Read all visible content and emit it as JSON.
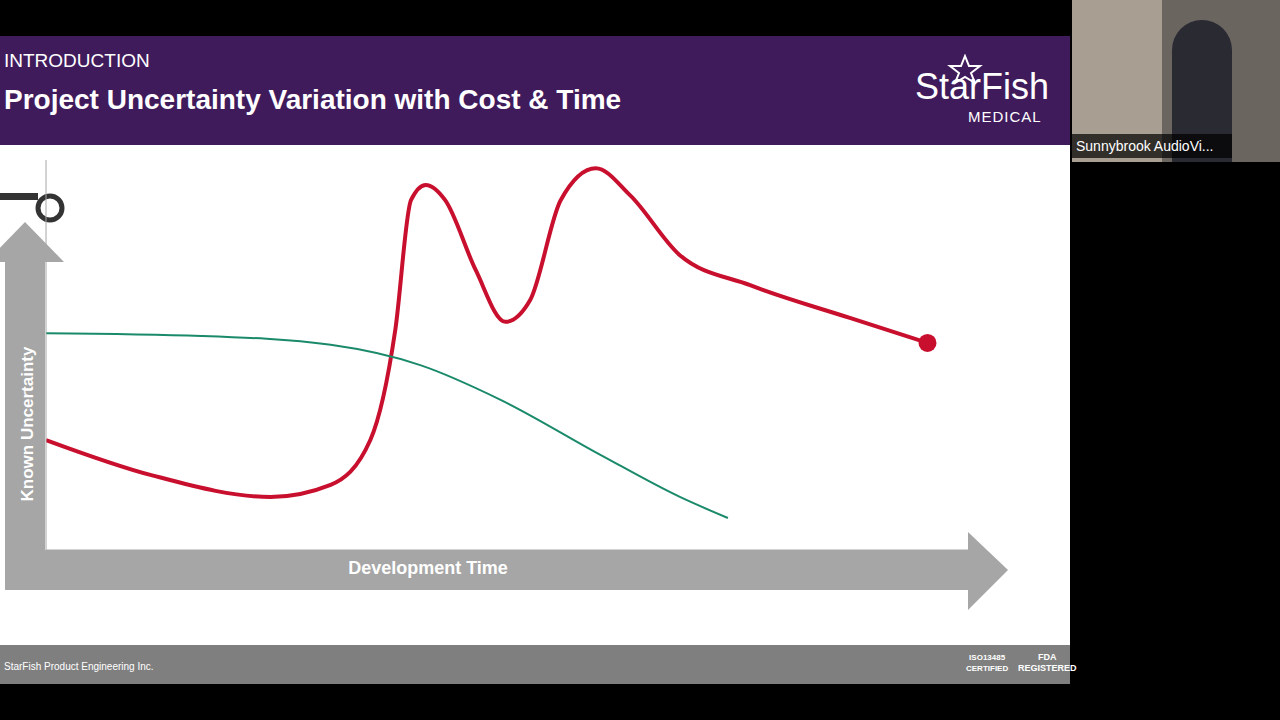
{
  "header": {
    "section": "INTRODUCTION",
    "title": "Project Uncertainty Variation with Cost & Time",
    "logo": "StarFish",
    "logo_sub": "MEDICAL"
  },
  "footer": {
    "text": "StarFish Product Engineering Inc.",
    "badges": [
      "ISO13485 CERTIFIED",
      "FDA REGISTERED"
    ]
  },
  "webcam": {
    "label": "Sunnybrook AudioVi..."
  },
  "chart_data": {
    "type": "line",
    "x_label": "Development Time",
    "y_label": "Known Uncertainty",
    "xlim": [
      0,
      100
    ],
    "ylim": [
      0,
      100
    ],
    "tick_labels": false,
    "grid": false,
    "series": [
      {
        "color": "#c8102e",
        "marker": "end_dot",
        "line_style": "solid",
        "x": [
          0,
          11.4,
          24.3,
          30.8,
          35.1,
          37.8,
          39.5,
          41.1,
          43.2,
          46.5,
          49.7,
          52.4,
          55.7,
          59.5,
          63.2,
          68.6,
          76.2,
          87.0,
          95.4
        ],
        "values": [
          28.2,
          19.2,
          13.6,
          16.7,
          28.2,
          56.4,
          89.7,
          93.6,
          89.7,
          71.8,
          58.5,
          64.1,
          89.7,
          97.9,
          91.0,
          75.6,
          67.9,
          59.5,
          53.1
        ]
      },
      {
        "color": "#1a8a6a",
        "marker": "none",
        "line_style": "solid",
        "x": [
          0,
          16.8,
          30.8,
          40.5,
          49.2,
          60.0,
          68.6,
          73.8
        ],
        "values": [
          55.6,
          54.9,
          52.6,
          47.4,
          38.5,
          24.4,
          13.6,
          8.2
        ]
      }
    ]
  }
}
